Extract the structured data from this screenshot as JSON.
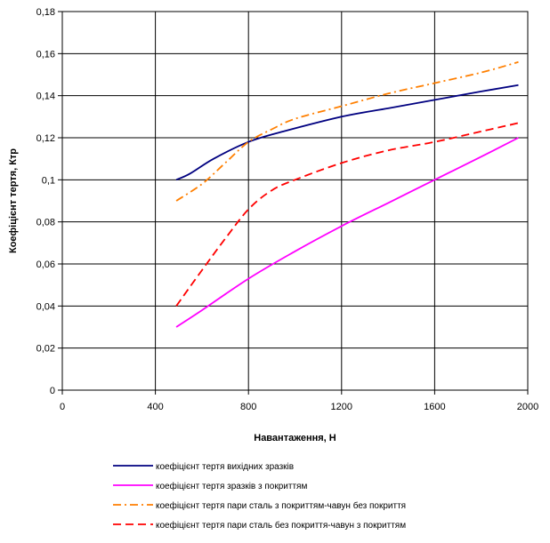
{
  "chart_data": {
    "type": "line",
    "xlabel": "Навантаження, Н",
    "ylabel": "Коефіцієнт тертя,  Ктр",
    "xlim": [
      0,
      2000
    ],
    "ylim": [
      0,
      0.18
    ],
    "x_ticks": [
      0,
      400,
      800,
      1200,
      1600,
      2000
    ],
    "y_ticks": [
      0,
      0.02,
      0.04,
      0.06,
      0.08,
      0.1,
      0.12,
      0.14,
      0.16,
      0.18
    ],
    "x_tick_labels": [
      "0",
      "400",
      "800",
      "1200",
      "1600",
      "2000"
    ],
    "y_tick_labels": [
      "0",
      "0,02",
      "0,04",
      "0,06",
      "0,08",
      "0,1",
      "0,12",
      "0,14",
      "0,16",
      "0,18"
    ],
    "grid": true,
    "legend_position": "bottom",
    "series": [
      {
        "name": "коефіцієнт тертя вихідних зразків",
        "color": "#000080",
        "dash": "solid",
        "x": [
          490,
          550,
          650,
          800,
          950,
          1200,
          1400,
          1600,
          1800,
          1960
        ],
        "y": [
          0.1,
          0.103,
          0.11,
          0.118,
          0.123,
          0.13,
          0.134,
          0.138,
          0.142,
          0.145
        ]
      },
      {
        "name": "коефіцієнт тертя зразків з покриттям",
        "color": "#ff00ff",
        "dash": "solid",
        "x": [
          490,
          600,
          800,
          1000,
          1200,
          1400,
          1600,
          1800,
          1960
        ],
        "y": [
          0.03,
          0.038,
          0.053,
          0.066,
          0.078,
          0.089,
          0.1,
          0.111,
          0.12
        ]
      },
      {
        "name": "коефіцієнт тертя пари сталь з покриттям-чавун без покриття",
        "color": "#ff7f00",
        "dash": "dashdot",
        "x": [
          490,
          600,
          700,
          800,
          900,
          1000,
          1200,
          1400,
          1600,
          1800,
          1960
        ],
        "y": [
          0.09,
          0.098,
          0.108,
          0.118,
          0.124,
          0.129,
          0.135,
          0.141,
          0.146,
          0.151,
          0.156
        ]
      },
      {
        "name": "коефіцієнт тертя пари сталь без покриття-чавун з покриттям",
        "color": "#ff0000",
        "dash": "dashed",
        "x": [
          490,
          600,
          700,
          800,
          900,
          1000,
          1200,
          1400,
          1600,
          1800,
          1960
        ],
        "y": [
          0.04,
          0.057,
          0.072,
          0.086,
          0.095,
          0.1,
          0.108,
          0.114,
          0.118,
          0.123,
          0.127
        ]
      }
    ]
  }
}
